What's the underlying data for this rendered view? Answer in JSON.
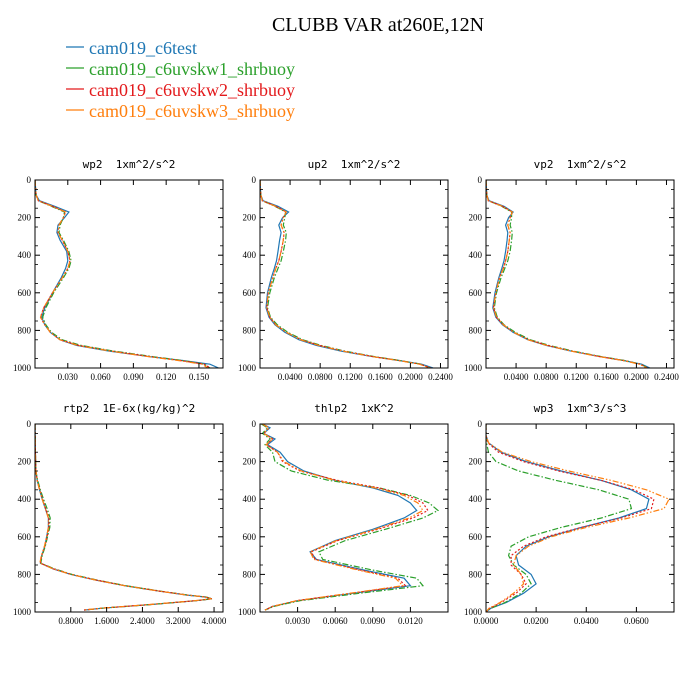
{
  "figure": {
    "title": "CLUBB VAR at260E,12N",
    "legend_placement": "top-left",
    "series": [
      {
        "name": "cam019_c6test",
        "color": "#1f77b4",
        "dash": "solid"
      },
      {
        "name": "cam019_c6uvskw1_shrbuoy",
        "color": "#2ca02c",
        "dash": "dashdot"
      },
      {
        "name": "cam019_c6uvskw2_shrbuoy",
        "color": "#e31a1c",
        "dash": "dot"
      },
      {
        "name": "cam019_c6uvskw3_shrbuoy",
        "color": "#ff7f0e",
        "dash": "dashdotdot"
      }
    ]
  },
  "chart_data": [
    {
      "type": "line",
      "title": "wp2  1xm^2/s^2",
      "xlim": [
        0,
        0.172
      ],
      "ylim": [
        1000,
        0
      ],
      "xticks": [
        0.03,
        0.06,
        0.09,
        0.12,
        0.15
      ],
      "xtick_labels": [
        "0.030",
        "0.060",
        "0.090",
        "0.120",
        "0.150"
      ],
      "yticks": [
        0,
        200,
        400,
        600,
        800,
        1000
      ],
      "ytick_labels": [
        "0",
        "200",
        "400",
        "600",
        "800",
        "1000"
      ],
      "y": [
        0,
        80,
        110,
        140,
        170,
        200,
        240,
        280,
        320,
        380,
        430,
        470,
        520,
        600,
        680,
        730,
        770,
        810,
        850,
        880,
        910,
        940,
        960,
        980,
        1000
      ],
      "series": [
        {
          "values": [
            0.0,
            0.001,
            0.004,
            0.018,
            0.031,
            0.027,
            0.021,
            0.02,
            0.023,
            0.029,
            0.03,
            0.028,
            0.024,
            0.016,
            0.009,
            0.006,
            0.009,
            0.014,
            0.023,
            0.038,
            0.068,
            0.105,
            0.135,
            0.16,
            0.168
          ]
        },
        {
          "values": [
            0.0,
            0.001,
            0.003,
            0.015,
            0.027,
            0.026,
            0.023,
            0.022,
            0.026,
            0.031,
            0.033,
            0.031,
            0.026,
            0.017,
            0.01,
            0.007,
            0.01,
            0.015,
            0.025,
            0.042,
            0.072,
            0.108,
            0.135,
            0.155,
            0.16
          ]
        },
        {
          "values": [
            0.0,
            0.001,
            0.003,
            0.016,
            0.028,
            0.026,
            0.022,
            0.021,
            0.025,
            0.03,
            0.032,
            0.03,
            0.025,
            0.016,
            0.008,
            0.005,
            0.009,
            0.014,
            0.023,
            0.04,
            0.07,
            0.106,
            0.133,
            0.155,
            0.16
          ]
        },
        {
          "values": [
            0.0,
            0.001,
            0.003,
            0.016,
            0.028,
            0.026,
            0.022,
            0.021,
            0.025,
            0.03,
            0.032,
            0.03,
            0.025,
            0.016,
            0.008,
            0.005,
            0.009,
            0.014,
            0.023,
            0.039,
            0.069,
            0.104,
            0.131,
            0.153,
            0.158
          ]
        }
      ]
    },
    {
      "type": "line",
      "title": "up2  1xm^2/s^2",
      "xlim": [
        0,
        0.25
      ],
      "ylim": [
        1000,
        0
      ],
      "xticks": [
        0.04,
        0.08,
        0.12,
        0.16,
        0.2,
        0.24
      ],
      "xtick_labels": [
        "0.0400",
        "0.0800",
        "0.1200",
        "0.1600",
        "0.2000",
        "0.2400"
      ],
      "yticks": [
        0,
        200,
        400,
        600,
        800,
        1000
      ],
      "ytick_labels": [
        "0",
        "200",
        "400",
        "600",
        "800",
        "1000"
      ],
      "y": [
        0,
        80,
        110,
        140,
        170,
        200,
        240,
        280,
        320,
        380,
        430,
        470,
        520,
        600,
        680,
        730,
        770,
        810,
        850,
        880,
        910,
        940,
        960,
        980,
        1000
      ],
      "series": [
        {
          "values": [
            0.0,
            0.001,
            0.004,
            0.024,
            0.038,
            0.03,
            0.025,
            0.028,
            0.026,
            0.024,
            0.022,
            0.019,
            0.015,
            0.01,
            0.008,
            0.012,
            0.02,
            0.033,
            0.052,
            0.075,
            0.108,
            0.15,
            0.185,
            0.215,
            0.23
          ]
        },
        {
          "values": [
            0.0,
            0.001,
            0.003,
            0.02,
            0.034,
            0.033,
            0.031,
            0.035,
            0.034,
            0.031,
            0.028,
            0.024,
            0.019,
            0.013,
            0.01,
            0.014,
            0.023,
            0.037,
            0.057,
            0.081,
            0.113,
            0.153,
            0.186,
            0.214,
            0.226
          ]
        },
        {
          "values": [
            0.0,
            0.001,
            0.003,
            0.021,
            0.035,
            0.031,
            0.028,
            0.032,
            0.031,
            0.028,
            0.025,
            0.021,
            0.017,
            0.011,
            0.009,
            0.013,
            0.021,
            0.035,
            0.055,
            0.079,
            0.111,
            0.151,
            0.185,
            0.213,
            0.227
          ]
        },
        {
          "values": [
            0.0,
            0.001,
            0.003,
            0.021,
            0.035,
            0.031,
            0.028,
            0.032,
            0.031,
            0.028,
            0.025,
            0.021,
            0.017,
            0.011,
            0.009,
            0.013,
            0.021,
            0.035,
            0.054,
            0.078,
            0.11,
            0.15,
            0.184,
            0.212,
            0.226
          ]
        }
      ]
    },
    {
      "type": "line",
      "title": "vp2  1xm^2/s^2",
      "xlim": [
        0,
        0.25
      ],
      "ylim": [
        1000,
        0
      ],
      "xticks": [
        0.04,
        0.08,
        0.12,
        0.16,
        0.2,
        0.24
      ],
      "xtick_labels": [
        "0.0400",
        "0.0800",
        "0.1200",
        "0.1600",
        "0.2000",
        "0.2400"
      ],
      "yticks": [
        0,
        200,
        400,
        600,
        800,
        1000
      ],
      "ytick_labels": [
        "0",
        "200",
        "400",
        "600",
        "800",
        "1000"
      ],
      "y": [
        0,
        80,
        110,
        140,
        170,
        200,
        240,
        280,
        320,
        380,
        430,
        470,
        520,
        600,
        680,
        730,
        770,
        810,
        850,
        880,
        910,
        940,
        960,
        980,
        1000
      ],
      "series": [
        {
          "values": [
            0.0,
            0.001,
            0.004,
            0.024,
            0.036,
            0.03,
            0.026,
            0.029,
            0.028,
            0.026,
            0.024,
            0.021,
            0.017,
            0.012,
            0.009,
            0.013,
            0.022,
            0.036,
            0.056,
            0.08,
            0.113,
            0.152,
            0.183,
            0.207,
            0.218
          ]
        },
        {
          "values": [
            0.0,
            0.001,
            0.003,
            0.021,
            0.034,
            0.034,
            0.032,
            0.035,
            0.034,
            0.032,
            0.029,
            0.025,
            0.02,
            0.014,
            0.011,
            0.015,
            0.024,
            0.039,
            0.059,
            0.084,
            0.116,
            0.154,
            0.184,
            0.206,
            0.215
          ]
        },
        {
          "values": [
            0.0,
            0.001,
            0.003,
            0.022,
            0.035,
            0.032,
            0.029,
            0.032,
            0.031,
            0.029,
            0.026,
            0.023,
            0.018,
            0.013,
            0.01,
            0.014,
            0.023,
            0.037,
            0.057,
            0.082,
            0.114,
            0.152,
            0.183,
            0.205,
            0.215
          ]
        },
        {
          "values": [
            0.0,
            0.001,
            0.003,
            0.022,
            0.035,
            0.032,
            0.029,
            0.032,
            0.031,
            0.029,
            0.026,
            0.023,
            0.018,
            0.013,
            0.01,
            0.014,
            0.023,
            0.037,
            0.056,
            0.081,
            0.113,
            0.151,
            0.182,
            0.204,
            0.214
          ]
        }
      ]
    },
    {
      "type": "line",
      "title": "rtp2  1E-6x(kg/kg)^2",
      "xlim": [
        0,
        4.2
      ],
      "ylim": [
        1000,
        0
      ],
      "xticks": [
        0.8,
        1.6,
        2.4,
        3.2,
        4.0
      ],
      "xtick_labels": [
        "0.8000",
        "1.6000",
        "2.4000",
        "3.2000",
        "4.0000"
      ],
      "yticks": [
        0,
        200,
        400,
        600,
        800,
        1000
      ],
      "ytick_labels": [
        "0",
        "200",
        "400",
        "600",
        "800",
        "1000"
      ],
      "y": [
        0,
        150,
        250,
        300,
        350,
        400,
        450,
        500,
        550,
        600,
        650,
        700,
        740,
        770,
        800,
        830,
        860,
        890,
        910,
        920,
        930,
        940,
        960,
        980,
        990
      ],
      "series": [
        {
          "values": [
            0.0,
            0.01,
            0.02,
            0.05,
            0.1,
            0.16,
            0.23,
            0.3,
            0.3,
            0.26,
            0.22,
            0.15,
            0.12,
            0.4,
            0.8,
            1.35,
            2.0,
            2.8,
            3.4,
            3.8,
            3.95,
            3.6,
            2.6,
            1.5,
            1.1
          ]
        },
        {
          "values": [
            0.0,
            0.01,
            0.02,
            0.06,
            0.12,
            0.19,
            0.27,
            0.34,
            0.33,
            0.28,
            0.23,
            0.16,
            0.13,
            0.43,
            0.83,
            1.38,
            2.03,
            2.83,
            3.42,
            3.82,
            3.96,
            3.6,
            2.6,
            1.5,
            1.1
          ]
        },
        {
          "values": [
            0.0,
            0.01,
            0.02,
            0.05,
            0.11,
            0.17,
            0.24,
            0.31,
            0.31,
            0.27,
            0.22,
            0.15,
            0.12,
            0.41,
            0.81,
            1.36,
            2.01,
            2.81,
            3.41,
            3.81,
            3.95,
            3.58,
            2.58,
            1.48,
            1.08
          ]
        },
        {
          "values": [
            0.0,
            0.01,
            0.02,
            0.05,
            0.1,
            0.16,
            0.23,
            0.3,
            0.3,
            0.26,
            0.21,
            0.14,
            0.11,
            0.4,
            0.8,
            1.35,
            2.0,
            2.8,
            3.4,
            3.8,
            3.94,
            3.57,
            2.57,
            1.47,
            1.08
          ]
        }
      ]
    },
    {
      "type": "line",
      "title": "thlp2  1xK^2",
      "xlim": [
        0,
        0.015
      ],
      "ylim": [
        1000,
        0
      ],
      "xticks": [
        0.003,
        0.006,
        0.009,
        0.012
      ],
      "xtick_labels": [
        "0.0030",
        "0.0060",
        "0.0090",
        "0.0120"
      ],
      "yticks": [
        0,
        200,
        400,
        600,
        800,
        1000
      ],
      "ytick_labels": [
        "0",
        "200",
        "400",
        "600",
        "800",
        "1000"
      ],
      "y": [
        0,
        20,
        50,
        80,
        110,
        150,
        200,
        250,
        300,
        340,
        380,
        420,
        460,
        500,
        560,
        620,
        680,
        720,
        780,
        820,
        860,
        900,
        940,
        970,
        990
      ],
      "series": [
        {
          "values": [
            0.0002,
            0.0008,
            0.0003,
            0.0012,
            0.0006,
            0.0016,
            0.0022,
            0.0035,
            0.006,
            0.009,
            0.011,
            0.012,
            0.0125,
            0.0115,
            0.009,
            0.006,
            0.004,
            0.0045,
            0.0085,
            0.0115,
            0.012,
            0.0075,
            0.003,
            0.001,
            0.0004
          ]
        },
        {
          "values": [
            0.0001,
            0.0006,
            0.0002,
            0.0008,
            0.0004,
            0.001,
            0.0012,
            0.0025,
            0.0055,
            0.0095,
            0.012,
            0.0135,
            0.0142,
            0.013,
            0.01,
            0.0068,
            0.0047,
            0.005,
            0.0092,
            0.0125,
            0.013,
            0.008,
            0.0032,
            0.0011,
            0.0004
          ]
        },
        {
          "values": [
            0.0002,
            0.0007,
            0.0003,
            0.001,
            0.0005,
            0.0014,
            0.0018,
            0.0032,
            0.0062,
            0.0095,
            0.0118,
            0.013,
            0.0134,
            0.0122,
            0.0094,
            0.0062,
            0.0041,
            0.0044,
            0.0082,
            0.011,
            0.0116,
            0.0073,
            0.0029,
            0.001,
            0.0004
          ]
        },
        {
          "values": [
            0.0002,
            0.0007,
            0.0003,
            0.001,
            0.0005,
            0.0014,
            0.0019,
            0.0033,
            0.006,
            0.0092,
            0.0115,
            0.0126,
            0.013,
            0.0119,
            0.0092,
            0.0061,
            0.004,
            0.0043,
            0.008,
            0.0108,
            0.0114,
            0.0072,
            0.0029,
            0.001,
            0.0004
          ]
        }
      ]
    },
    {
      "type": "line",
      "title": "wp3  1xm^3/s^3",
      "xlim": [
        0,
        0.075
      ],
      "ylim": [
        1000,
        0
      ],
      "xticks": [
        0,
        0.02,
        0.04,
        0.06
      ],
      "xtick_labels": [
        "0.0000",
        "0.0200",
        "0.0400",
        "0.0600"
      ],
      "yticks": [
        0,
        200,
        400,
        600,
        800,
        1000
      ],
      "ytick_labels": [
        "0",
        "200",
        "400",
        "600",
        "800",
        "1000"
      ],
      "y": [
        0,
        60,
        100,
        150,
        200,
        250,
        300,
        350,
        400,
        450,
        500,
        550,
        600,
        650,
        700,
        750,
        800,
        850,
        900,
        950,
        980,
        1000
      ],
      "series": [
        {
          "values": [
            0.0,
            0.0,
            0.001,
            0.006,
            0.016,
            0.03,
            0.046,
            0.058,
            0.065,
            0.064,
            0.053,
            0.038,
            0.025,
            0.016,
            0.012,
            0.013,
            0.018,
            0.02,
            0.015,
            0.008,
            0.002,
            0.0
          ]
        },
        {
          "values": [
            0.0,
            0.0,
            0.0002,
            0.001,
            0.004,
            0.013,
            0.028,
            0.045,
            0.057,
            0.058,
            0.046,
            0.03,
            0.017,
            0.01,
            0.009,
            0.011,
            0.016,
            0.018,
            0.014,
            0.0075,
            0.002,
            0.0
          ]
        },
        {
          "values": [
            0.0,
            0.0,
            0.0008,
            0.005,
            0.015,
            0.029,
            0.046,
            0.059,
            0.067,
            0.066,
            0.054,
            0.038,
            0.024,
            0.015,
            0.01,
            0.01,
            0.014,
            0.016,
            0.012,
            0.006,
            0.0015,
            0.0
          ]
        },
        {
          "values": [
            0.0,
            0.0,
            0.001,
            0.0065,
            0.018,
            0.033,
            0.05,
            0.064,
            0.073,
            0.071,
            0.057,
            0.04,
            0.026,
            0.017,
            0.012,
            0.011,
            0.014,
            0.015,
            0.011,
            0.0055,
            0.0012,
            0.0
          ]
        }
      ]
    }
  ]
}
